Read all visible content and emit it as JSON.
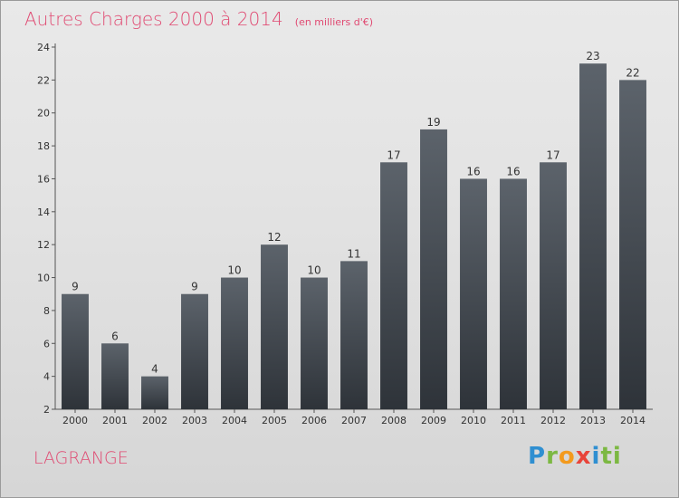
{
  "header": {
    "title": "Autres Charges 2000 à 2014",
    "subtitle": "(en milliers d'€)"
  },
  "footer": {
    "commune": "LAGRANGE",
    "logo_letters": [
      "P",
      "r",
      "o",
      "x",
      "i",
      "ti"
    ]
  },
  "colors": {
    "title": "#e04a72",
    "bar_top": "#5c636b",
    "bar_bottom": "#2e3339"
  },
  "chart_data": {
    "type": "bar",
    "title": "Autres Charges 2000 à 2014",
    "subtitle": "(en milliers d'€)",
    "xlabel": "",
    "ylabel": "",
    "categories": [
      "2000",
      "2001",
      "2002",
      "2003",
      "2004",
      "2005",
      "2006",
      "2007",
      "2008",
      "2009",
      "2010",
      "2011",
      "2012",
      "2013",
      "2014"
    ],
    "values": [
      9,
      6,
      4,
      9,
      10,
      12,
      10,
      11,
      17,
      19,
      16,
      16,
      17,
      23,
      22
    ],
    "ylim": [
      2,
      24
    ],
    "yticks": [
      2,
      4,
      6,
      8,
      10,
      12,
      14,
      16,
      18,
      20,
      22,
      24
    ],
    "grid": false,
    "legend": "none"
  }
}
